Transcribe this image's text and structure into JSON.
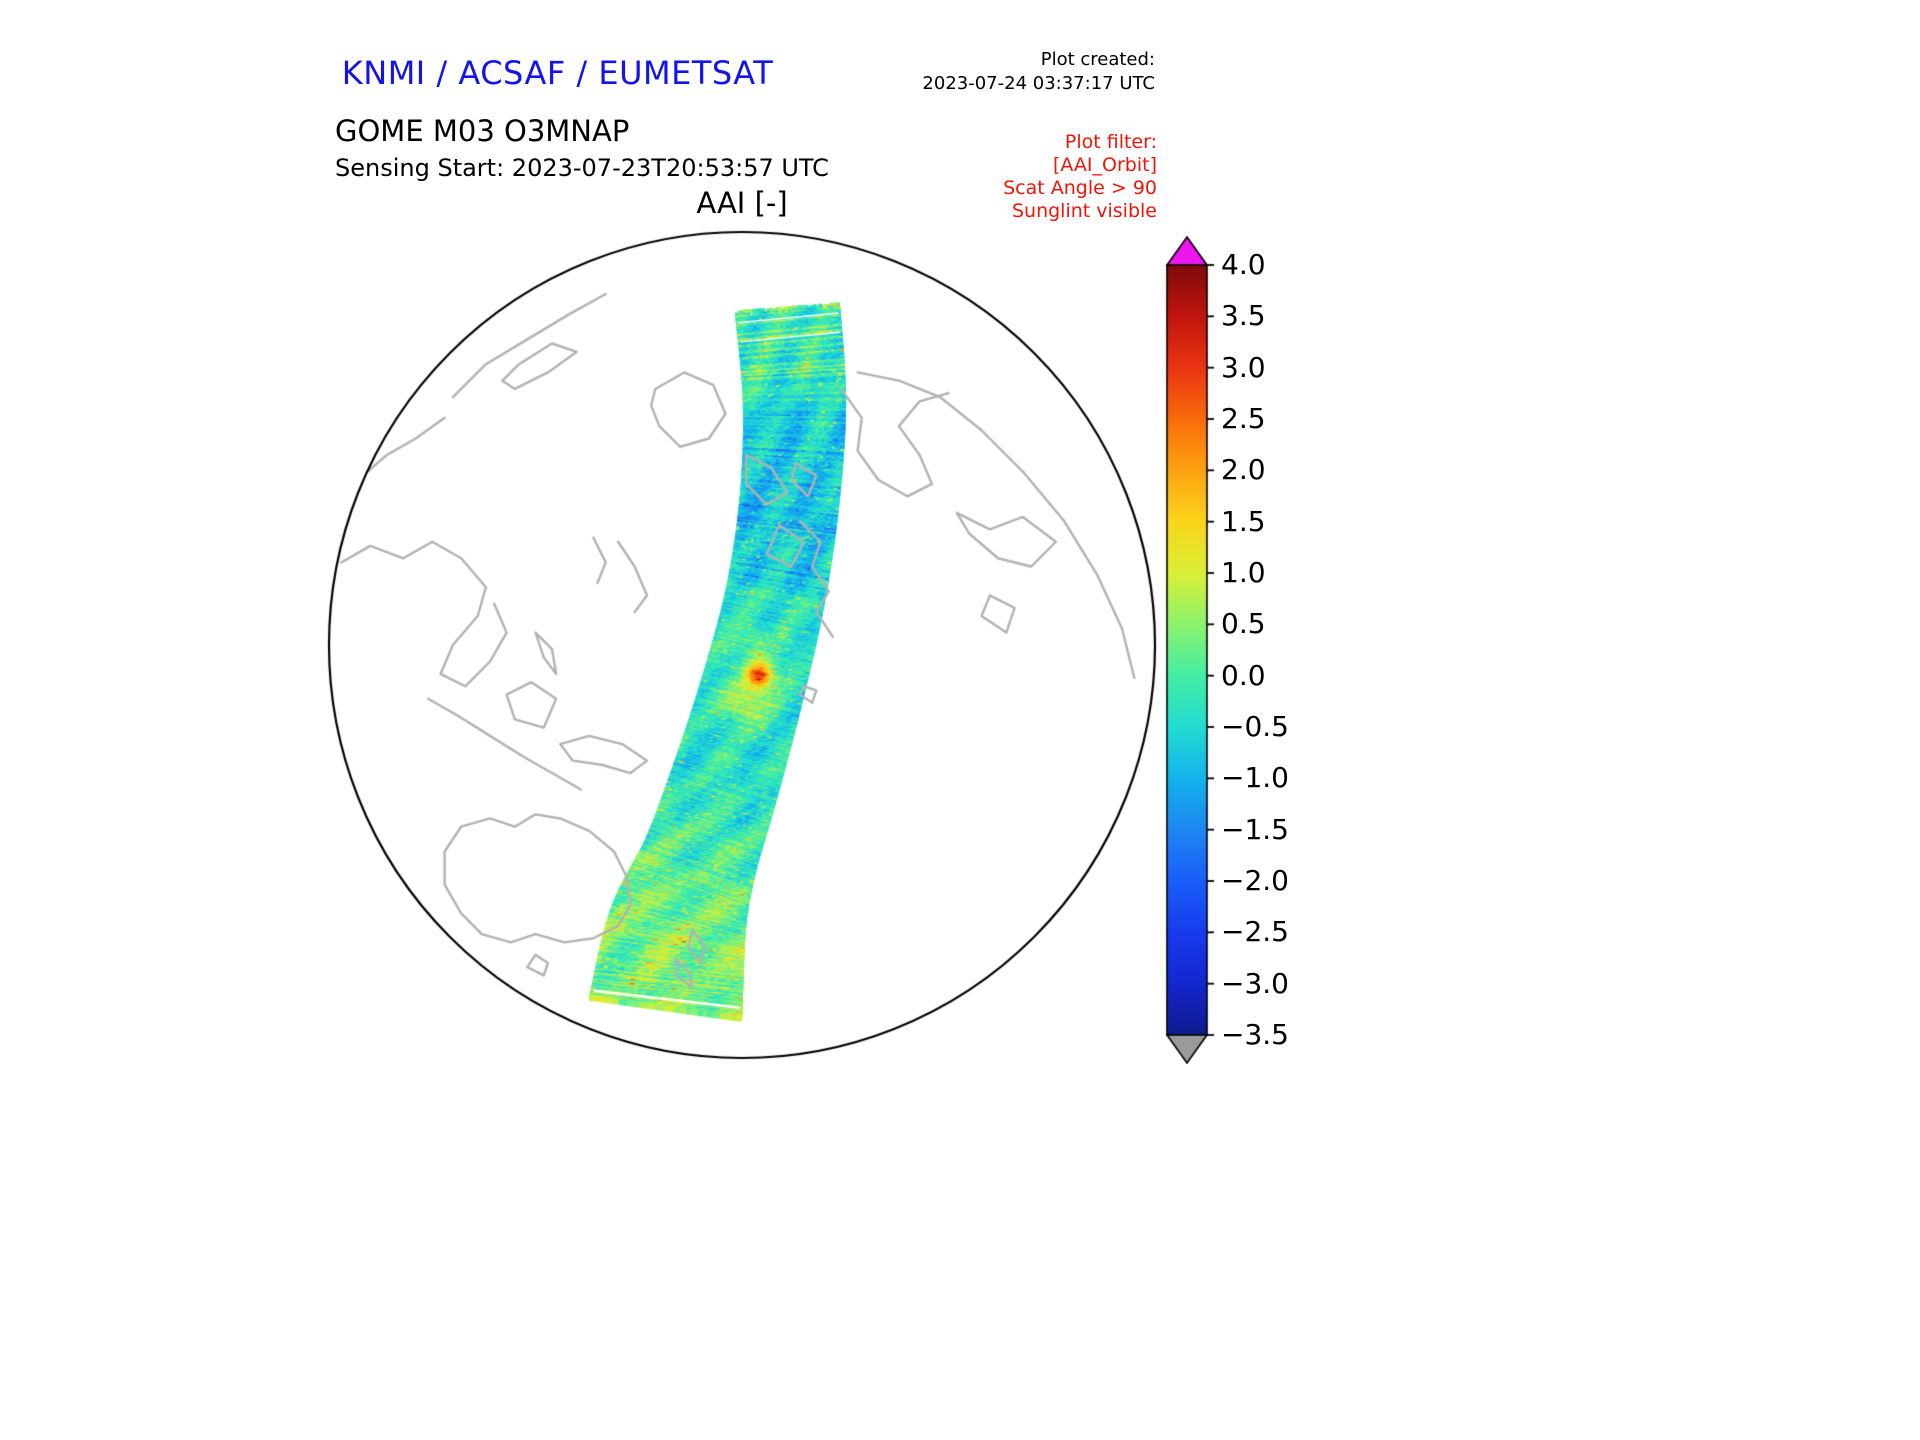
{
  "colors": {
    "title_blue": "#1313f0",
    "filter_red": "#ef1508",
    "text": "#000000",
    "background": "#ffffff"
  },
  "header": {
    "agency_title": "KNMI / ACSAF / EUMETSAT",
    "plot_created_label": "Plot created:",
    "plot_created_value": "2023-07-24 03:37:17 UTC",
    "product_name": "GOME M03 O3MNAP",
    "sensing_start": "Sensing Start: 2023-07-23T20:53:57 UTC",
    "filter": {
      "title": "Plot filter:",
      "lines": [
        "[AAI_Orbit]",
        "Scat Angle > 90",
        "Sunglint visible"
      ]
    }
  },
  "chart_data": {
    "type": "heatmap",
    "projection": "orthographic",
    "title": "AAI [-]",
    "legend_position": "right",
    "colorbar": {
      "orientation": "vertical",
      "extend": "both",
      "min": -3.5,
      "max": 4.0,
      "over_color": "#ee16ee",
      "under_color": "#9a9a9a",
      "ticks": [
        {
          "label": "4.0",
          "value": 4.0
        },
        {
          "label": "3.5",
          "value": 3.5
        },
        {
          "label": "3.0",
          "value": 3.0
        },
        {
          "label": "2.5",
          "value": 2.5
        },
        {
          "label": "2.0",
          "value": 2.0
        },
        {
          "label": "1.5",
          "value": 1.5
        },
        {
          "label": "1.0",
          "value": 1.0
        },
        {
          "label": "0.5",
          "value": 0.5
        },
        {
          "label": "0.0",
          "value": 0.0
        },
        {
          "label": "−0.5",
          "value": -0.5
        },
        {
          "label": "−1.0",
          "value": -1.0
        },
        {
          "label": "−1.5",
          "value": -1.5
        },
        {
          "label": "−2.0",
          "value": -2.0
        },
        {
          "label": "−2.5",
          "value": -2.5
        },
        {
          "label": "−3.0",
          "value": -3.0
        },
        {
          "label": "−3.5",
          "value": -3.5
        }
      ],
      "stops": [
        {
          "value": -3.5,
          "color": "#101a8e"
        },
        {
          "value": -3.0,
          "color": "#1526cf"
        },
        {
          "value": -2.5,
          "color": "#173cee"
        },
        {
          "value": -2.0,
          "color": "#1a5ef8"
        },
        {
          "value": -1.5,
          "color": "#1d87f2"
        },
        {
          "value": -1.0,
          "color": "#13b4ec"
        },
        {
          "value": -0.5,
          "color": "#22dcd2"
        },
        {
          "value": 0.0,
          "color": "#44eda4"
        },
        {
          "value": 0.5,
          "color": "#8df26e"
        },
        {
          "value": 1.0,
          "color": "#d9ef35"
        },
        {
          "value": 1.5,
          "color": "#fbd51c"
        },
        {
          "value": 2.0,
          "color": "#fca311"
        },
        {
          "value": 2.5,
          "color": "#f96c0a"
        },
        {
          "value": 3.0,
          "color": "#ea3413"
        },
        {
          "value": 3.5,
          "color": "#c2150e"
        },
        {
          "value": 4.0,
          "color": "#7e0a0a"
        }
      ]
    },
    "swath": {
      "value_mean": -0.35,
      "value_noise_sd": 0.45,
      "centerline": [
        {
          "x": 0.11,
          "y": -0.815,
          "w": 0.245
        },
        {
          "x": 0.127,
          "y": -0.59,
          "w": 0.24
        },
        {
          "x": 0.115,
          "y": -0.35,
          "w": 0.232
        },
        {
          "x": 0.079,
          "y": -0.11,
          "w": 0.232
        },
        {
          "x": 0.018,
          "y": 0.133,
          "w": 0.242
        },
        {
          "x": -0.047,
          "y": 0.351,
          "w": 0.255
        },
        {
          "x": -0.103,
          "y": 0.52,
          "w": 0.27
        },
        {
          "x": -0.158,
          "y": 0.69,
          "w": 0.325
        },
        {
          "x": -0.185,
          "y": 0.88,
          "w": 0.36
        }
      ],
      "hotspots": [
        {
          "t": 0.469,
          "u": 0.04,
          "amplitude": 3.3,
          "t_sigma": 0.016,
          "u_sigma": 0.13
        },
        {
          "t": 0.505,
          "u": -0.02,
          "amplitude": 1.4,
          "t_sigma": 0.028,
          "u_sigma": 0.2
        },
        {
          "t": 0.432,
          "u": -0.1,
          "amplitude": 0.9,
          "t_sigma": 0.02,
          "u_sigma": 0.15
        }
      ],
      "gap_lines": [
        0.02,
        0.048,
        0.978
      ]
    },
    "map": {
      "coastline_color": "#b2b2b2",
      "outline_color": "#000000",
      "coastlines": [
        {
          "name": "australia",
          "points": [
            [
              -0.72,
              0.5
            ],
            [
              -0.68,
              0.44
            ],
            [
              -0.61,
              0.42
            ],
            [
              -0.55,
              0.44
            ],
            [
              -0.5,
              0.41
            ],
            [
              -0.44,
              0.42
            ],
            [
              -0.37,
              0.45
            ],
            [
              -0.31,
              0.5
            ],
            [
              -0.28,
              0.56
            ],
            [
              -0.27,
              0.63
            ],
            [
              -0.3,
              0.68
            ],
            [
              -0.36,
              0.71
            ],
            [
              -0.43,
              0.72
            ],
            [
              -0.5,
              0.7
            ],
            [
              -0.56,
              0.72
            ],
            [
              -0.63,
              0.7
            ],
            [
              -0.68,
              0.65
            ],
            [
              -0.72,
              0.58
            ],
            [
              -0.72,
              0.5
            ]
          ]
        },
        {
          "name": "tasmania",
          "points": [
            [
              -0.5,
              0.75
            ],
            [
              -0.47,
              0.77
            ],
            [
              -0.48,
              0.8
            ],
            [
              -0.52,
              0.78
            ],
            [
              -0.5,
              0.75
            ]
          ]
        },
        {
          "name": "new-zealand-north",
          "points": [
            [
              -0.12,
              0.69
            ],
            [
              -0.09,
              0.73
            ],
            [
              -0.1,
              0.77
            ],
            [
              -0.13,
              0.73
            ],
            [
              -0.12,
              0.69
            ]
          ]
        },
        {
          "name": "new-zealand-south",
          "points": [
            [
              -0.16,
              0.76
            ],
            [
              -0.13,
              0.79
            ],
            [
              -0.12,
              0.83
            ],
            [
              -0.16,
              0.8
            ],
            [
              -0.16,
              0.76
            ]
          ]
        },
        {
          "name": "new-guinea",
          "points": [
            [
              -0.44,
              0.24
            ],
            [
              -0.37,
              0.22
            ],
            [
              -0.29,
              0.24
            ],
            [
              -0.23,
              0.28
            ],
            [
              -0.27,
              0.31
            ],
            [
              -0.34,
              0.29
            ],
            [
              -0.41,
              0.28
            ],
            [
              -0.44,
              0.24
            ]
          ]
        },
        {
          "name": "borneo",
          "points": [
            [
              -0.57,
              0.12
            ],
            [
              -0.51,
              0.09
            ],
            [
              -0.45,
              0.13
            ],
            [
              -0.48,
              0.2
            ],
            [
              -0.55,
              0.18
            ],
            [
              -0.57,
              0.12
            ]
          ]
        },
        {
          "name": "sumatra-java",
          "points": [
            [
              -0.76,
              0.13
            ],
            [
              -0.69,
              0.17
            ],
            [
              -0.61,
              0.22
            ],
            [
              -0.53,
              0.27
            ],
            [
              -0.46,
              0.31
            ],
            [
              -0.39,
              0.35
            ]
          ]
        },
        {
          "name": "philippines",
          "points": [
            [
              -0.5,
              -0.03
            ],
            [
              -0.46,
              0.01
            ],
            [
              -0.45,
              0.07
            ],
            [
              -0.48,
              0.03
            ],
            [
              -0.5,
              -0.03
            ]
          ]
        },
        {
          "name": "asia-east-coast",
          "points": [
            [
              -0.97,
              -0.2
            ],
            [
              -0.9,
              -0.24
            ],
            [
              -0.82,
              -0.21
            ],
            [
              -0.75,
              -0.25
            ],
            [
              -0.68,
              -0.21
            ],
            [
              -0.62,
              -0.14
            ],
            [
              -0.64,
              -0.07
            ],
            [
              -0.7,
              0.0
            ],
            [
              -0.73,
              0.07
            ],
            [
              -0.67,
              0.1
            ],
            [
              -0.61,
              0.04
            ],
            [
              -0.57,
              -0.03
            ],
            [
              -0.6,
              -0.1
            ]
          ]
        },
        {
          "name": "korea",
          "points": [
            [
              -0.36,
              -0.26
            ],
            [
              -0.33,
              -0.2
            ],
            [
              -0.35,
              -0.15
            ]
          ]
        },
        {
          "name": "japan",
          "points": [
            [
              -0.3,
              -0.25
            ],
            [
              -0.26,
              -0.19
            ],
            [
              -0.23,
              -0.12
            ],
            [
              -0.26,
              -0.08
            ]
          ]
        },
        {
          "name": "kamchatka-okhotsk",
          "points": [
            [
              0.24,
              -0.62
            ],
            [
              0.29,
              -0.55
            ],
            [
              0.28,
              -0.47
            ],
            [
              0.33,
              -0.4
            ],
            [
              0.4,
              -0.36
            ],
            [
              0.46,
              -0.39
            ],
            [
              0.43,
              -0.46
            ],
            [
              0.38,
              -0.53
            ],
            [
              0.43,
              -0.59
            ],
            [
              0.5,
              -0.61
            ]
          ]
        },
        {
          "name": "arctic-siberia-coast",
          "points": [
            [
              0.28,
              -0.66
            ],
            [
              0.38,
              -0.64
            ],
            [
              0.48,
              -0.6
            ],
            [
              0.58,
              -0.52
            ],
            [
              0.68,
              -0.42
            ],
            [
              0.78,
              -0.3
            ],
            [
              0.86,
              -0.17
            ],
            [
              0.92,
              -0.04
            ],
            [
              0.95,
              0.08
            ]
          ]
        },
        {
          "name": "europe-coast",
          "points": [
            [
              0.52,
              -0.32
            ],
            [
              0.6,
              -0.28
            ],
            [
              0.68,
              -0.31
            ],
            [
              0.76,
              -0.25
            ],
            [
              0.7,
              -0.19
            ],
            [
              0.62,
              -0.21
            ],
            [
              0.55,
              -0.27
            ],
            [
              0.52,
              -0.32
            ]
          ]
        },
        {
          "name": "inland-sea",
          "points": [
            [
              0.6,
              -0.12
            ],
            [
              0.66,
              -0.09
            ],
            [
              0.64,
              -0.03
            ],
            [
              0.58,
              -0.07
            ],
            [
              0.6,
              -0.12
            ]
          ]
        },
        {
          "name": "greenland",
          "points": [
            [
              -0.21,
              -0.62
            ],
            [
              -0.14,
              -0.66
            ],
            [
              -0.07,
              -0.63
            ],
            [
              -0.04,
              -0.56
            ],
            [
              -0.08,
              -0.5
            ],
            [
              -0.15,
              -0.48
            ],
            [
              -0.2,
              -0.53
            ],
            [
              -0.22,
              -0.58
            ],
            [
              -0.21,
              -0.62
            ]
          ]
        },
        {
          "name": "arctic-island-1",
          "points": [
            [
              0.01,
              -0.46
            ],
            [
              0.07,
              -0.43
            ],
            [
              0.11,
              -0.37
            ],
            [
              0.06,
              -0.34
            ],
            [
              0.01,
              -0.39
            ],
            [
              0.01,
              -0.46
            ]
          ]
        },
        {
          "name": "arctic-island-2",
          "points": [
            [
              0.09,
              -0.29
            ],
            [
              0.15,
              -0.25
            ],
            [
              0.12,
              -0.19
            ],
            [
              0.06,
              -0.22
            ],
            [
              0.09,
              -0.29
            ]
          ]
        },
        {
          "name": "arctic-island-3",
          "points": [
            [
              0.13,
              -0.44
            ],
            [
              0.18,
              -0.41
            ],
            [
              0.16,
              -0.36
            ],
            [
              0.12,
              -0.4
            ],
            [
              0.13,
              -0.44
            ]
          ]
        },
        {
          "name": "hudson-coast",
          "points": [
            [
              0.14,
              -0.3
            ],
            [
              0.19,
              -0.25
            ],
            [
              0.17,
              -0.19
            ],
            [
              0.21,
              -0.13
            ],
            [
              0.18,
              -0.08
            ],
            [
              0.22,
              -0.02
            ]
          ]
        },
        {
          "name": "small-island",
          "points": [
            [
              0.15,
              0.1
            ],
            [
              0.18,
              0.11
            ],
            [
              0.17,
              0.14
            ],
            [
              0.14,
              0.12
            ],
            [
              0.15,
              0.1
            ]
          ]
        },
        {
          "name": "top-left-coast",
          "points": [
            [
              -0.7,
              -0.6
            ],
            [
              -0.62,
              -0.68
            ],
            [
              -0.52,
              -0.74
            ],
            [
              -0.42,
              -0.8
            ],
            [
              -0.33,
              -0.85
            ]
          ]
        },
        {
          "name": "top-left-loop",
          "points": [
            [
              -0.55,
              -0.62
            ],
            [
              -0.47,
              -0.66
            ],
            [
              -0.4,
              -0.71
            ],
            [
              -0.46,
              -0.73
            ],
            [
              -0.54,
              -0.68
            ],
            [
              -0.58,
              -0.64
            ],
            [
              -0.55,
              -0.62
            ]
          ]
        },
        {
          "name": "left-edge-coast",
          "points": [
            [
              -0.93,
              -0.4
            ],
            [
              -0.86,
              -0.46
            ],
            [
              -0.79,
              -0.5
            ],
            [
              -0.72,
              -0.55
            ]
          ]
        }
      ]
    }
  }
}
